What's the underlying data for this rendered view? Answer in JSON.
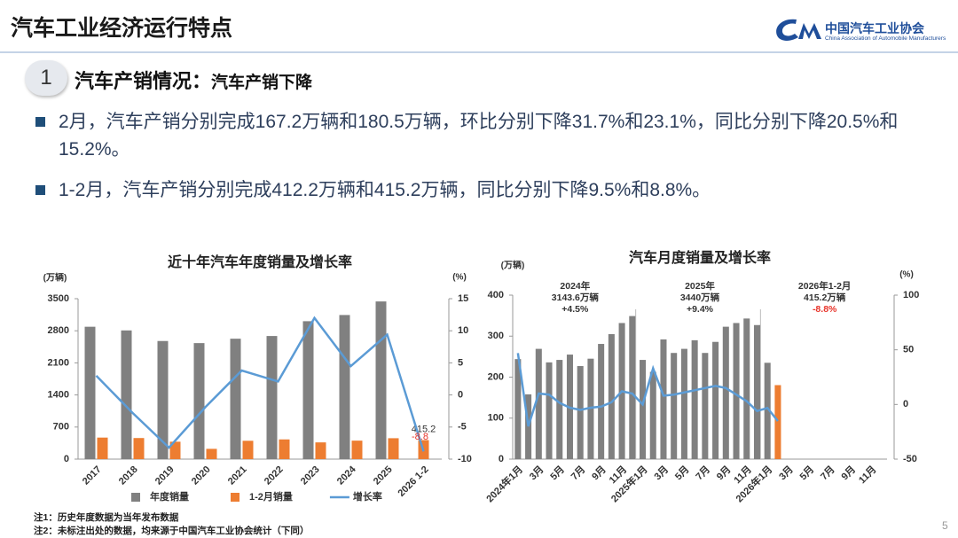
{
  "header": {
    "title": "汽车工业经济运行特点",
    "logo_name": "中国汽车工业协会",
    "logo_english": "China Association of Automobile Manufacturers"
  },
  "section": {
    "number": "1",
    "title": "汽车产销情况：",
    "subtitle": "汽车产销下降"
  },
  "bullets": [
    "2月，汽车产销分别完成167.2万辆和180.5万辆，环比分别下降31.7%和23.1%，同比分别下降20.5%和15.2%。",
    "1-2月，汽车产销分别完成412.2万辆和415.2万辆，同比分别下降9.5%和8.8%。"
  ],
  "notes": [
    "注1：历史年度数据为当年发布数据",
    "注2：未标注出处的数据，均来源于中国汽车工业协会统计（下同）"
  ],
  "page_number": "5",
  "chart_data": [
    {
      "type": "bar",
      "title": "近十年汽车年度销量及增长率",
      "y_label": "(万辆)",
      "y2_label": "(%)",
      "categories": [
        "2017",
        "2018",
        "2019",
        "2020",
        "2021",
        "2022",
        "2023",
        "2024",
        "2025",
        "2026 1-2"
      ],
      "ylim": [
        0,
        3500
      ],
      "yticks": [
        0,
        700,
        1400,
        2100,
        2800,
        3500
      ],
      "y2lim": [
        -10,
        15
      ],
      "y2ticks": [
        -10,
        -5,
        0,
        5,
        10,
        15
      ],
      "legend": "bottom",
      "series": [
        {
          "name": "年度销量",
          "type": "bar",
          "color": "#808080",
          "values": [
            2888,
            2808,
            2577,
            2531,
            2627,
            2686,
            3009,
            3144,
            3440,
            null
          ]
        },
        {
          "name": "1-2月销量",
          "type": "bar",
          "color": "#ed7d31",
          "values": [
            470,
            460,
            380,
            224,
            400,
            430,
            365,
            403,
            456,
            415.2
          ],
          "label_last": true,
          "label_color": "#333333"
        },
        {
          "name": "增长率",
          "type": "line",
          "axis": "y2",
          "color": "#5b9bd5",
          "values": [
            3.0,
            -2.8,
            -8.2,
            -1.9,
            3.8,
            2.1,
            12.0,
            4.5,
            9.4,
            -8.8
          ],
          "label_last": true,
          "label_color": "#e8342a"
        }
      ]
    },
    {
      "type": "bar",
      "title": "汽车月度销量及增长率",
      "y_label": "(万辆)",
      "y2_label": "(%)",
      "categories": [
        "2024年1月",
        null,
        "3月",
        null,
        "5月",
        null,
        "7月",
        null,
        "9月",
        null,
        "11月",
        null,
        "2025年1月",
        null,
        "3月",
        null,
        "5月",
        null,
        "7月",
        null,
        "9月",
        null,
        "11月",
        null,
        "2026年1月",
        null,
        "3月",
        null,
        "5月",
        null,
        "7月",
        null,
        "9月",
        null,
        "11月",
        null
      ],
      "ylim": [
        0,
        400
      ],
      "yticks": [
        0,
        100,
        200,
        300,
        400
      ],
      "y2lim": [
        -50,
        100
      ],
      "y2ticks": [
        -50,
        0,
        50,
        100
      ],
      "series": [
        {
          "type": "bar",
          "color": "#808080",
          "values": [
            244,
            158,
            269,
            236,
            242,
            255,
            227,
            245,
            281,
            305,
            332,
            349,
            242,
            213,
            292,
            259,
            269,
            290,
            259,
            286,
            323,
            332,
            343,
            327,
            235,
            null,
            null,
            null,
            null,
            null,
            null,
            null,
            null,
            null,
            null,
            null
          ]
        },
        {
          "type": "bar",
          "color": "#ed7d31",
          "values": [
            null,
            null,
            null,
            null,
            null,
            null,
            null,
            null,
            null,
            null,
            null,
            null,
            null,
            null,
            null,
            null,
            null,
            null,
            null,
            null,
            null,
            null,
            null,
            null,
            null,
            180.5,
            null,
            null,
            null,
            null,
            null,
            null,
            null,
            null,
            null,
            null
          ]
        },
        {
          "type": "line",
          "axis": "y2",
          "color": "#5b9bd5",
          "values": [
            47,
            -20,
            10,
            9,
            1.5,
            -3,
            -5,
            -3,
            -2,
            2,
            12,
            10,
            0,
            33,
            8,
            9,
            11,
            13,
            15,
            17,
            15,
            9,
            3,
            -6,
            -3.2,
            -15.2,
            null,
            null,
            null,
            null,
            null,
            null,
            null,
            null,
            null,
            null
          ]
        }
      ],
      "annotations": [
        {
          "lines": [
            "2024年",
            "3143.6万辆",
            "+4.5%"
          ]
        },
        {
          "lines": [
            "2025年",
            "3440万辆",
            "+9.4%"
          ]
        },
        {
          "lines": [
            "2026年1-2月",
            "415.2万辆",
            "-8.8%"
          ],
          "last_line_color": "#e8342a"
        }
      ]
    }
  ]
}
